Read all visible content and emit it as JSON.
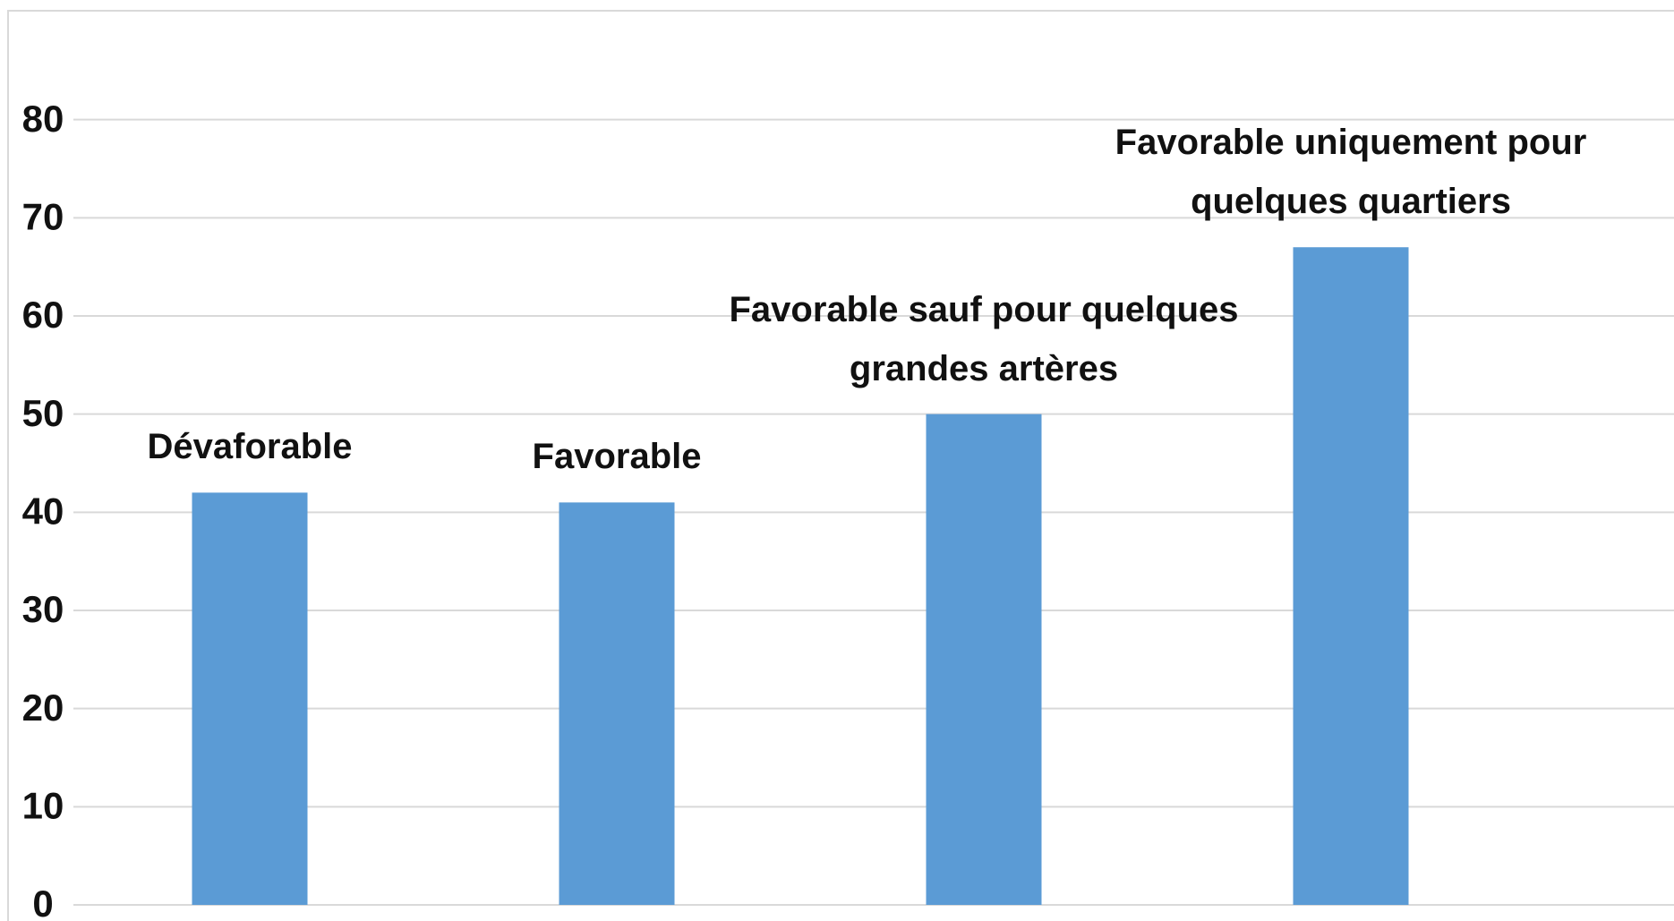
{
  "chart_data": {
    "type": "bar",
    "categories": [
      "Dévaforable",
      "Favorable",
      "Favorable sauf pour quelques grandes artères",
      "Favorable uniquement pour quelques quartiers"
    ],
    "values": [
      42,
      41,
      50,
      67
    ],
    "color": "#5b9bd5",
    "ylim": [
      0,
      90
    ],
    "yticks": [
      0,
      10,
      20,
      30,
      40,
      50,
      60,
      70,
      80
    ],
    "grid": true
  }
}
